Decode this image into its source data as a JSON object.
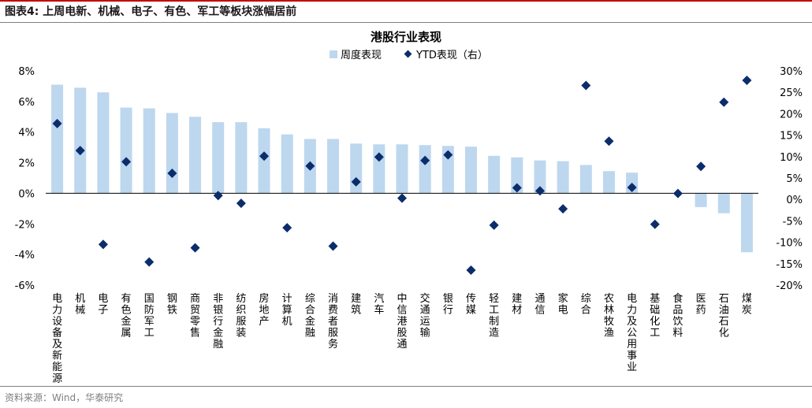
{
  "figure": {
    "title": "图表4:  上周电新、机械、电子、有色、军工等板块涨幅居前",
    "source": "资料来源：Wind，华泰研究"
  },
  "chart_data": {
    "type": "bar",
    "title": "港股行业表现",
    "categories": [
      "电力设备及新能源",
      "机械",
      "电子",
      "有色金属",
      "国防军工",
      "钢铁",
      "商贸零售",
      "非银行金融",
      "纺织服装",
      "房地产",
      "计算机",
      "综合金融",
      "消费者服务",
      "建筑",
      "汽车",
      "中信港股通",
      "交通运输",
      "银行",
      "传媒",
      "轻工制造",
      "建材",
      "通信",
      "家电",
      "综合",
      "农林牧渔",
      "电力及公用事业",
      "基础化工",
      "食品饮料",
      "医药",
      "石油石化",
      "煤炭"
    ],
    "series": [
      {
        "name": "周度表现",
        "type": "bar",
        "axis": "left",
        "color": "#bdd7ee",
        "values": [
          7.1,
          6.9,
          6.6,
          5.6,
          5.55,
          5.25,
          5.0,
          4.65,
          4.65,
          4.25,
          3.85,
          3.55,
          3.55,
          3.25,
          3.2,
          3.2,
          3.15,
          3.1,
          3.05,
          2.45,
          2.35,
          2.15,
          2.1,
          1.85,
          1.45,
          1.35,
          0.0,
          0.0,
          -0.9,
          -1.3,
          -3.85
        ]
      },
      {
        "name": "YTD表现（右）",
        "type": "scatter",
        "axis": "right",
        "color": "#0b2d6b",
        "values": [
          17.7,
          11.4,
          -10.5,
          8.8,
          -14.6,
          6.1,
          -11.3,
          0.9,
          -0.9,
          10.1,
          -6.6,
          7.8,
          -10.9,
          4.1,
          9.9,
          0.3,
          9.1,
          10.4,
          -16.5,
          -6.0,
          2.7,
          2.0,
          -2.2,
          26.6,
          13.6,
          2.8,
          -5.8,
          1.4,
          7.7,
          22.7,
          27.8
        ]
      }
    ],
    "y_left": {
      "ylim": [
        -6,
        8
      ],
      "ticks": [
        "8%",
        "6%",
        "4%",
        "2%",
        "0%",
        "-2%",
        "-4%",
        "-6%"
      ],
      "values": [
        8,
        6,
        4,
        2,
        0,
        -2,
        -4,
        -6
      ]
    },
    "y_right": {
      "ylim": [
        -20,
        30
      ],
      "ticks": [
        "30%",
        "25%",
        "20%",
        "15%",
        "10%",
        "5%",
        "0%",
        "-5%",
        "-10%",
        "-15%",
        "-20%"
      ],
      "values": [
        30,
        25,
        20,
        15,
        10,
        5,
        0,
        -5,
        -10,
        -15,
        -20
      ]
    },
    "legend": {
      "position": "top-center",
      "items": [
        "周度表现",
        "YTD表现（右）"
      ]
    },
    "grid": false
  }
}
